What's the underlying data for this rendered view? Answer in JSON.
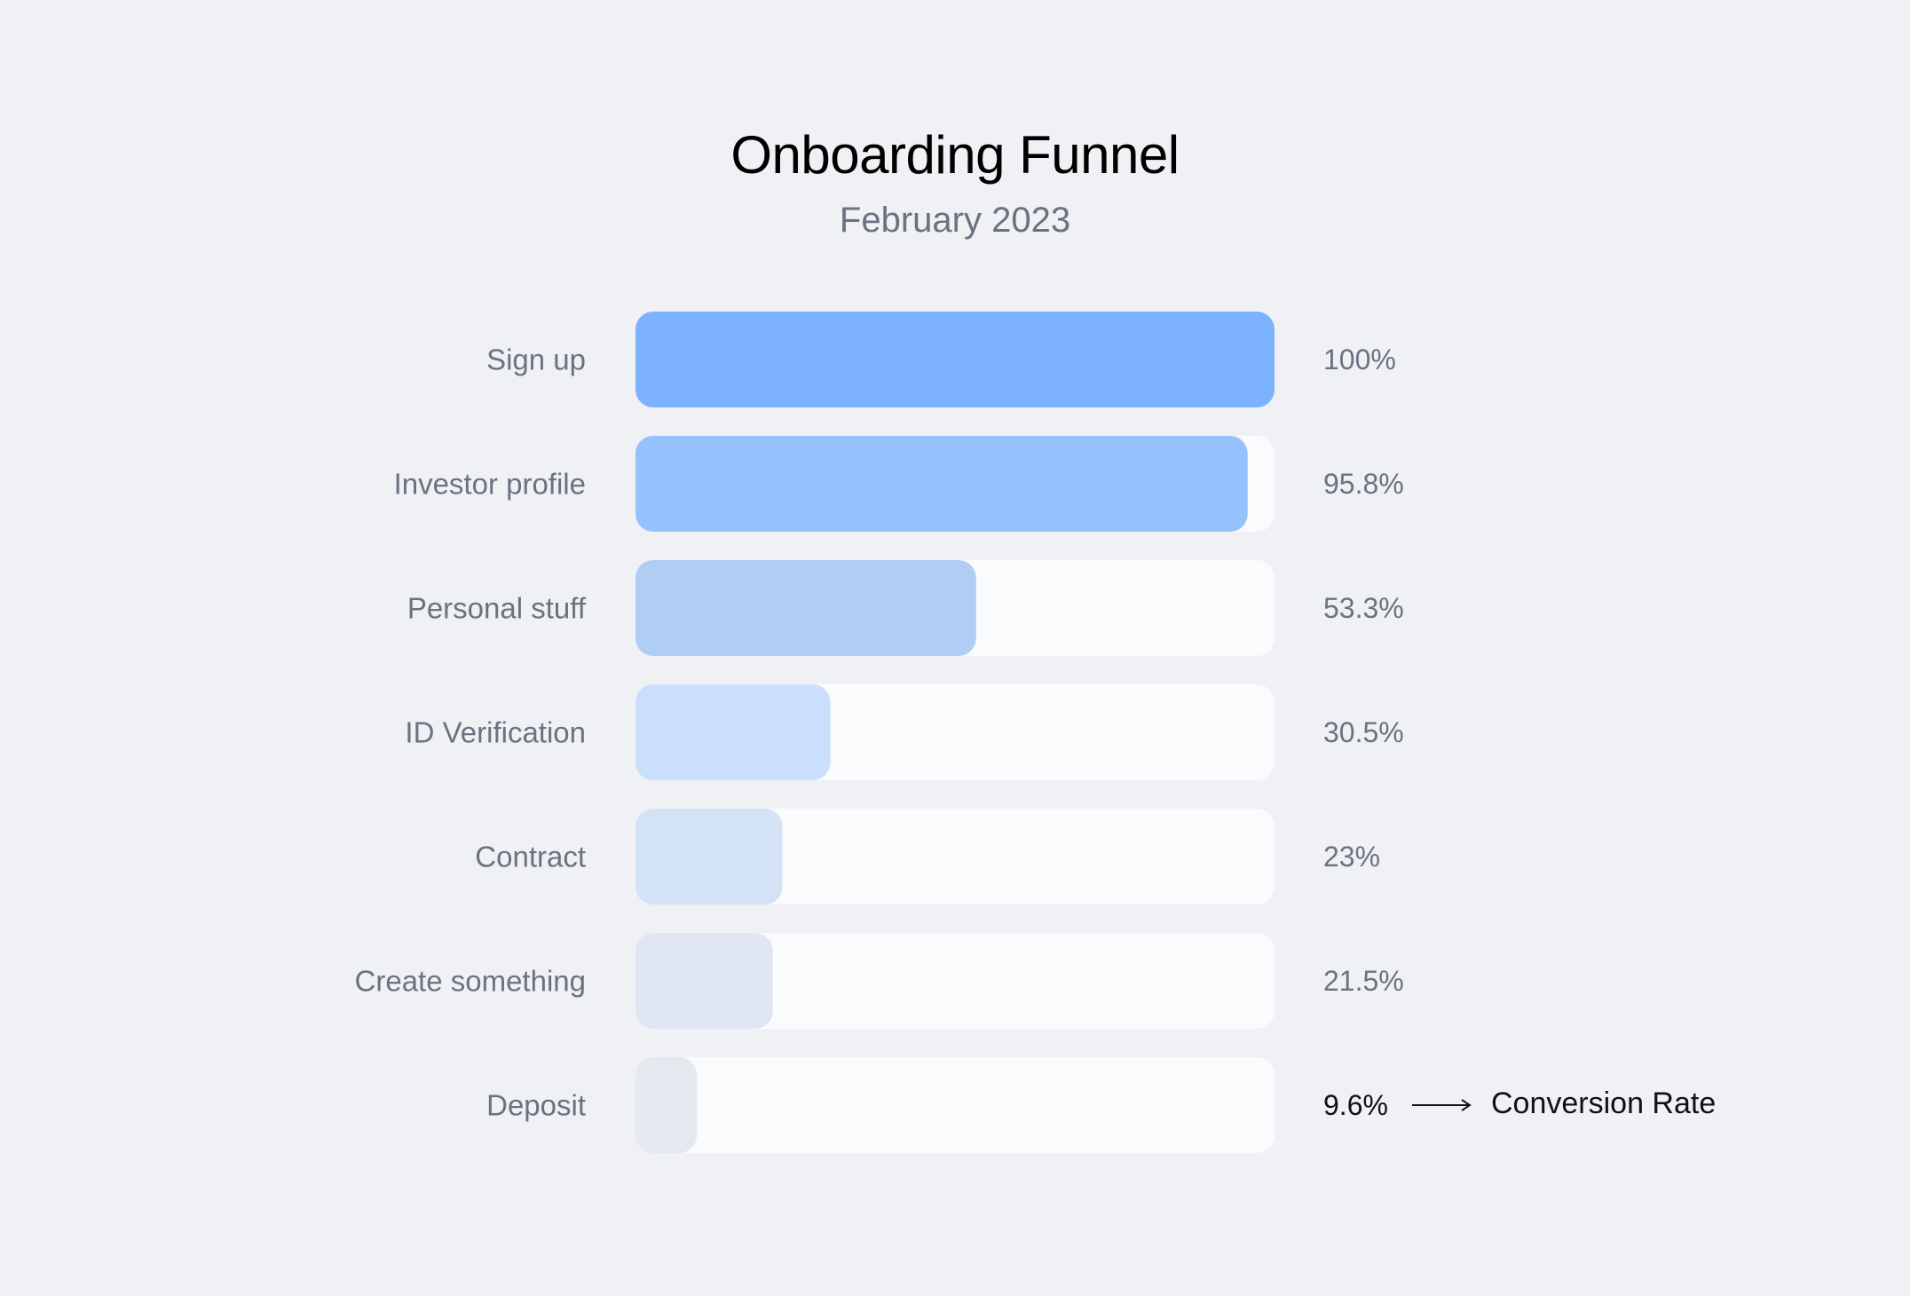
{
  "chart_data": {
    "type": "bar",
    "orientation": "horizontal",
    "title": "Onboarding Funnel",
    "subtitle": "February 2023",
    "categories": [
      "Sign up",
      "Investor profile",
      "Personal stuff",
      "ID Verification",
      "Contract",
      "Create something",
      "Deposit"
    ],
    "values": [
      100,
      95.8,
      53.3,
      30.5,
      23,
      21.5,
      9.6
    ],
    "value_labels": [
      "100%",
      "95.8%",
      "53.3%",
      "30.5%",
      "23%",
      "21.5%",
      "9.6%"
    ],
    "xlim": [
      0,
      100
    ],
    "grid": false,
    "legend": "none",
    "annotation": {
      "text": "Conversion Rate",
      "target_category": "Deposit"
    },
    "colors": {
      "background": "#f0f1f4",
      "track": "#fafbfd",
      "bars": [
        "#7cb2fe",
        "#95c1fc",
        "#b0cdf4",
        "#cadffb",
        "#d4e2f5",
        "#e0e7f2",
        "#e4e8ef"
      ],
      "label_text": "#6b7280",
      "annotation_text": "#111111"
    }
  }
}
